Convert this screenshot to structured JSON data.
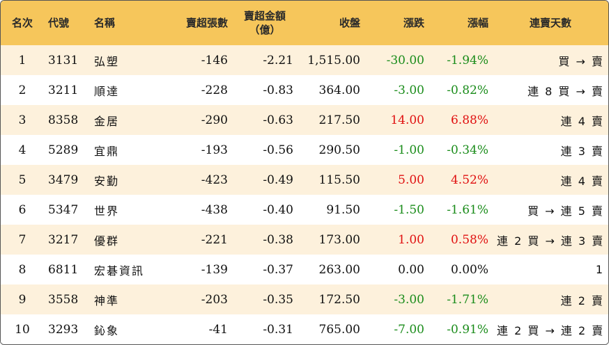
{
  "colors": {
    "header_bg": "#f6c65b",
    "row_odd_bg": "#fdf1dc",
    "row_even_bg": "#ffffff",
    "up": "#e01010",
    "down": "#1a8c1a",
    "flat": "#111111"
  },
  "headers": {
    "rank": "名次",
    "code": "代號",
    "name": "名稱",
    "sell_lots": "賣超張數",
    "sell_amount_line1": "賣超金額",
    "sell_amount_line2": "（億）",
    "close": "收盤",
    "change": "漲跌",
    "pct": "漲幅",
    "days": "連賣天數"
  },
  "rows": [
    {
      "rank": "1",
      "code": "3131",
      "name": "弘塑",
      "sell_lots": "-146",
      "sell_amount": "-2.21",
      "close": "1,515.00",
      "change": "-30.00",
      "pct": "-1.94%",
      "days": "買 → 賣",
      "dir": "down"
    },
    {
      "rank": "2",
      "code": "3211",
      "name": "順達",
      "sell_lots": "-228",
      "sell_amount": "-0.83",
      "close": "364.00",
      "change": "-3.00",
      "pct": "-0.82%",
      "days": "連 8 買 → 賣",
      "dir": "down"
    },
    {
      "rank": "3",
      "code": "8358",
      "name": "金居",
      "sell_lots": "-290",
      "sell_amount": "-0.63",
      "close": "217.50",
      "change": "14.00",
      "pct": "6.88%",
      "days": "連 4 賣",
      "dir": "up"
    },
    {
      "rank": "4",
      "code": "5289",
      "name": "宜鼎",
      "sell_lots": "-193",
      "sell_amount": "-0.56",
      "close": "290.50",
      "change": "-1.00",
      "pct": "-0.34%",
      "days": "連 3 賣",
      "dir": "down"
    },
    {
      "rank": "5",
      "code": "3479",
      "name": "安勤",
      "sell_lots": "-423",
      "sell_amount": "-0.49",
      "close": "115.50",
      "change": "5.00",
      "pct": "4.52%",
      "days": "連 4 賣",
      "dir": "up"
    },
    {
      "rank": "6",
      "code": "5347",
      "name": "世界",
      "sell_lots": "-438",
      "sell_amount": "-0.40",
      "close": "91.50",
      "change": "-1.50",
      "pct": "-1.61%",
      "days": "買 → 連 5 賣",
      "dir": "down"
    },
    {
      "rank": "7",
      "code": "3217",
      "name": "優群",
      "sell_lots": "-221",
      "sell_amount": "-0.38",
      "close": "173.00",
      "change": "1.00",
      "pct": "0.58%",
      "days": "連 2 買 → 連 3 賣",
      "dir": "up"
    },
    {
      "rank": "8",
      "code": "6811",
      "name": "宏碁資訊",
      "sell_lots": "-139",
      "sell_amount": "-0.37",
      "close": "263.00",
      "change": "0.00",
      "pct": "0.00%",
      "days": "1",
      "dir": "flat"
    },
    {
      "rank": "9",
      "code": "3558",
      "name": "神準",
      "sell_lots": "-203",
      "sell_amount": "-0.35",
      "close": "172.50",
      "change": "-3.00",
      "pct": "-1.71%",
      "days": "連 2 賣",
      "dir": "down"
    },
    {
      "rank": "10",
      "code": "3293",
      "name": "鈊象",
      "sell_lots": "-41",
      "sell_amount": "-0.31",
      "close": "765.00",
      "change": "-7.00",
      "pct": "-0.91%",
      "days": "連 2 買 → 連 2 賣",
      "dir": "down"
    }
  ]
}
